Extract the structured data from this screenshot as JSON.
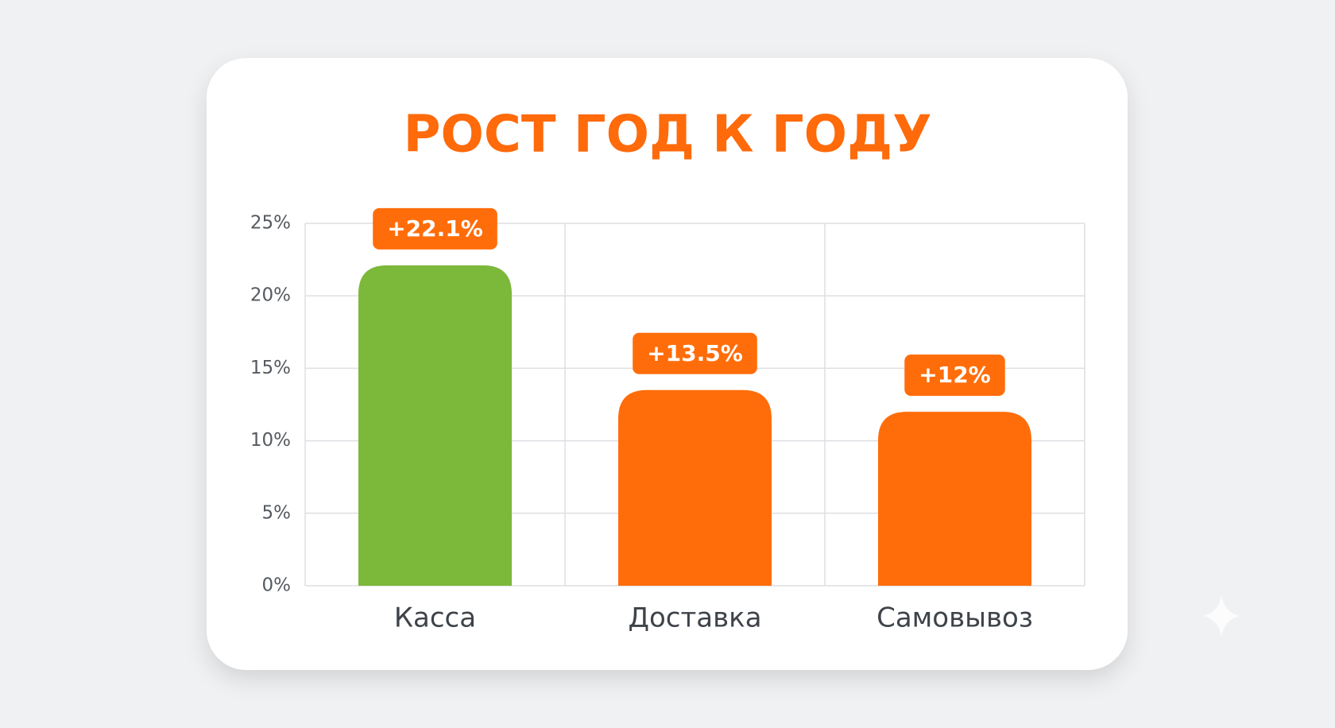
{
  "chart_data": {
    "type": "bar",
    "title": "РОСТ ГОД К ГОДУ",
    "categories": [
      "Касса",
      "Доставка",
      "Самовывоз"
    ],
    "values": [
      22.1,
      13.5,
      12
    ],
    "value_labels": [
      "+22.1%",
      "+13.5%",
      "+12%"
    ],
    "colors": [
      "#7cb83a",
      "#ff6d0a",
      "#ff6d0a"
    ],
    "label_color": "#ff6d0a",
    "ylim": [
      0,
      25
    ],
    "yticks": [
      {
        "value": 0,
        "label": "0%"
      },
      {
        "value": 5,
        "label": "5%"
      },
      {
        "value": 10,
        "label": "10%"
      },
      {
        "value": 15,
        "label": "15%"
      },
      {
        "value": 20,
        "label": "20%"
      },
      {
        "value": 25,
        "label": "25%"
      }
    ],
    "grid": true
  }
}
